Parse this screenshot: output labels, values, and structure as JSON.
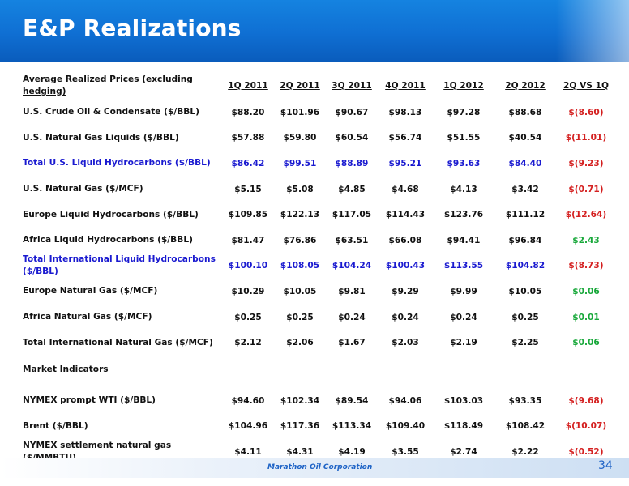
{
  "slide": {
    "title": "E&P Realizations",
    "footer_company": "Marathon Oil Corporation",
    "page_number": "34"
  },
  "table": {
    "header": {
      "label": "Average Realized Prices (excluding hedging)",
      "periods": [
        "1Q 2011",
        "2Q 2011",
        "3Q 2011",
        "4Q 2011",
        "1Q 2012",
        "2Q 2012"
      ],
      "comparison": "2Q VS 1Q"
    },
    "rows": [
      {
        "label": "U.S. Crude Oil & Condensate  ($/BBL)",
        "values": [
          "$88.20",
          "$101.96",
          "$90.67",
          "$98.13",
          "$97.28",
          "$88.68"
        ],
        "change": "$(8.60)",
        "change_sign": "negative",
        "total": false
      },
      {
        "label": "U.S. Natural Gas Liquids ($/BBL)",
        "values": [
          "$57.88",
          "$59.80",
          "$60.54",
          "$56.74",
          "$51.55",
          "$40.54"
        ],
        "change": "$(11.01)",
        "change_sign": "negative",
        "total": false
      },
      {
        "label": "Total U.S. Liquid Hydrocarbons ($/BBL)",
        "values": [
          "$86.42",
          "$99.51",
          "$88.89",
          "$95.21",
          "$93.63",
          "$84.40"
        ],
        "change": "$(9.23)",
        "change_sign": "negative",
        "total": true
      },
      {
        "label": "U.S. Natural Gas ($/MCF)",
        "values": [
          "$5.15",
          "$5.08",
          "$4.85",
          "$4.68",
          "$4.13",
          "$3.42"
        ],
        "change": "$(0.71)",
        "change_sign": "negative",
        "total": false
      },
      {
        "label": "Europe Liquid Hydrocarbons ($/BBL)",
        "values": [
          "$109.85",
          "$122.13",
          "$117.05",
          "$114.43",
          "$123.76",
          "$111.12"
        ],
        "change": "$(12.64)",
        "change_sign": "negative",
        "total": false
      },
      {
        "label": "Africa Liquid Hydrocarbons ($/BBL)",
        "values": [
          "$81.47",
          "$76.86",
          "$63.51",
          "$66.08",
          "$94.41",
          "$96.84"
        ],
        "change": "$2.43",
        "change_sign": "positive",
        "total": false
      },
      {
        "label": "Total International Liquid Hydrocarbons ($/BBL)",
        "values": [
          "$100.10",
          "$108.05",
          "$104.24",
          "$100.43",
          "$113.55",
          "$104.82"
        ],
        "change": "$(8.73)",
        "change_sign": "negative",
        "total": true
      },
      {
        "label": "Europe Natural Gas ($/MCF)",
        "values": [
          "$10.29",
          "$10.05",
          "$9.81",
          "$9.29",
          "$9.99",
          "$10.05"
        ],
        "change": "$0.06",
        "change_sign": "positive",
        "total": false
      },
      {
        "label": "Africa Natural Gas ($/MCF)",
        "values": [
          "$0.25",
          "$0.25",
          "$0.24",
          "$0.24",
          "$0.24",
          "$0.25"
        ],
        "change": "$0.01",
        "change_sign": "positive",
        "total": false
      },
      {
        "label": "Total International Natural Gas ($/MCF)",
        "values": [
          "$2.12",
          "$2.06",
          "$1.67",
          "$2.03",
          "$2.19",
          "$2.25"
        ],
        "change": "$0.06",
        "change_sign": "positive",
        "total": false
      }
    ],
    "market_section_label": "Market Indicators",
    "market_rows": [
      {
        "label": "NYMEX prompt WTI ($/BBL)",
        "values": [
          "$94.60",
          "$102.34",
          "$89.54",
          "$94.06",
          "$103.03",
          "$93.35"
        ],
        "change": "$(9.68)",
        "change_sign": "negative"
      },
      {
        "label": "Brent ($/BBL)",
        "values": [
          "$104.96",
          "$117.36",
          "$113.34",
          "$109.40",
          "$118.49",
          "$108.42"
        ],
        "change": "$(10.07)",
        "change_sign": "negative"
      },
      {
        "label": "NYMEX settlement natural gas ($/MMBTU)",
        "values": [
          "$4.11",
          "$4.31",
          "$4.19",
          "$3.55",
          "$2.74",
          "$2.22"
        ],
        "change": "$(0.52)",
        "change_sign": "negative"
      }
    ]
  },
  "colors": {
    "header_blue": "#0f6fd3",
    "total_row_blue": "#1a1ad0",
    "negative_red": "#d42020",
    "positive_green": "#18a83a",
    "footer_text_blue": "#1e63c6"
  }
}
